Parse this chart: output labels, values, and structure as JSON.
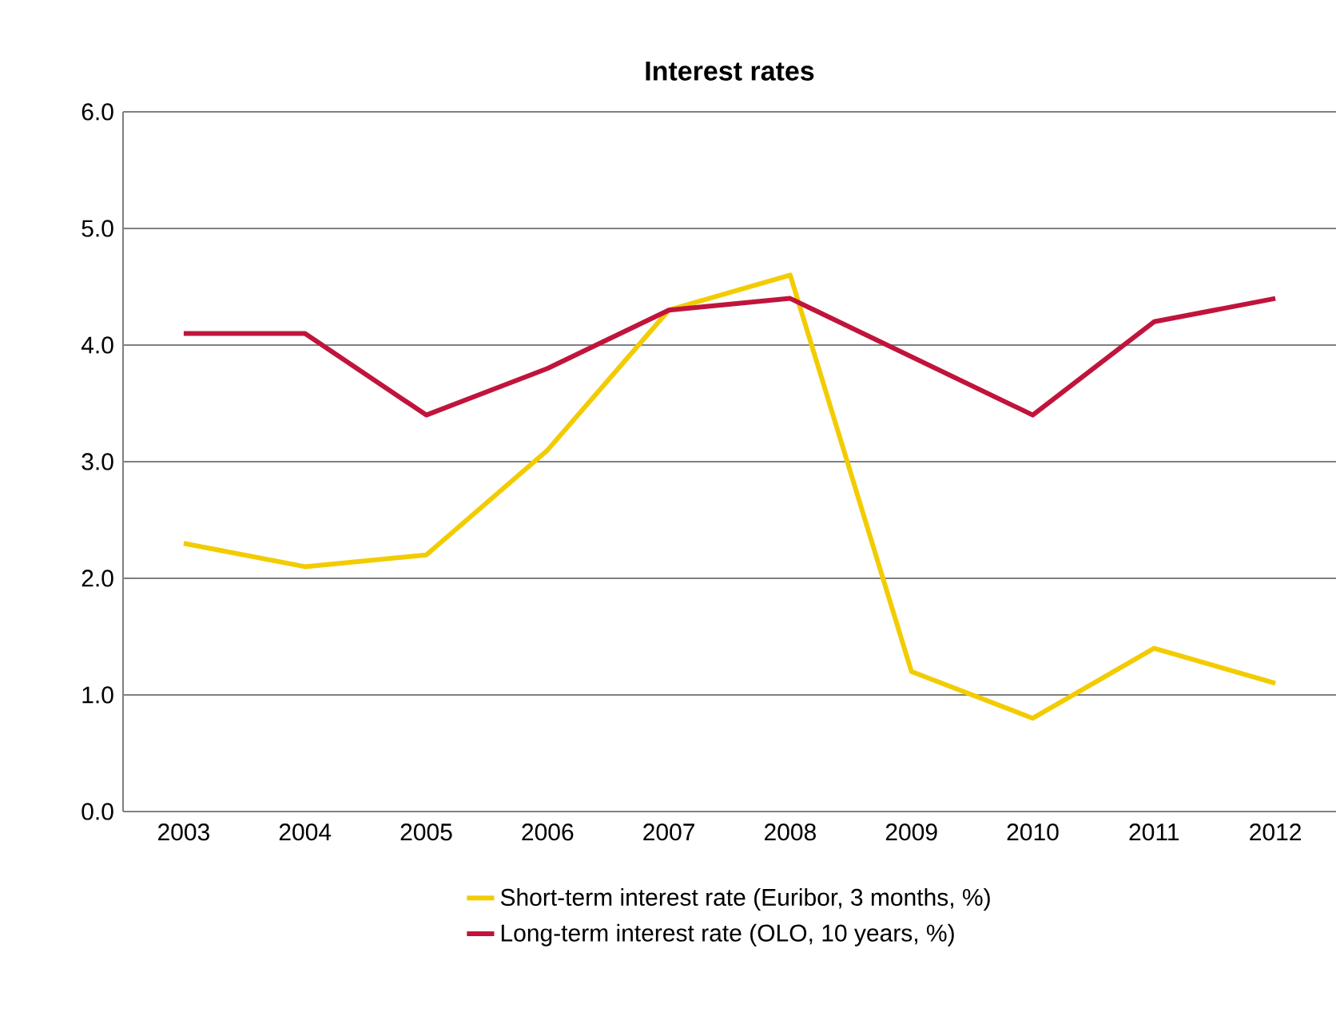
{
  "chart_data": {
    "type": "line",
    "title": "Interest rates",
    "categories": [
      "2003",
      "2004",
      "2005",
      "2006",
      "2007",
      "2008",
      "2009",
      "2010",
      "2011",
      "2012"
    ],
    "series": [
      {
        "name": "Short-term interest rate (Euribor, 3 months, %)",
        "color": "#f2cc00",
        "values": [
          2.3,
          2.1,
          2.2,
          3.1,
          4.3,
          4.6,
          1.2,
          0.8,
          1.4,
          1.1
        ]
      },
      {
        "name": "Long-term interest rate (OLO, 10 years, %)",
        "color": "#c0143c",
        "values": [
          4.1,
          4.1,
          3.4,
          3.8,
          4.3,
          4.4,
          3.9,
          3.4,
          4.2,
          4.4
        ]
      }
    ],
    "ylim": [
      0,
      6
    ],
    "yticks": [
      {
        "value": 0,
        "label": "0.0"
      },
      {
        "value": 1,
        "label": "1.0"
      },
      {
        "value": 2,
        "label": "2.0"
      },
      {
        "value": 3,
        "label": "3.0"
      },
      {
        "value": 4,
        "label": "4.0"
      },
      {
        "value": 5,
        "label": "5.0"
      },
      {
        "value": 6,
        "label": "6.0"
      }
    ],
    "grid": "y",
    "legend": "bottom",
    "marker": "none",
    "line_style": "solid"
  }
}
